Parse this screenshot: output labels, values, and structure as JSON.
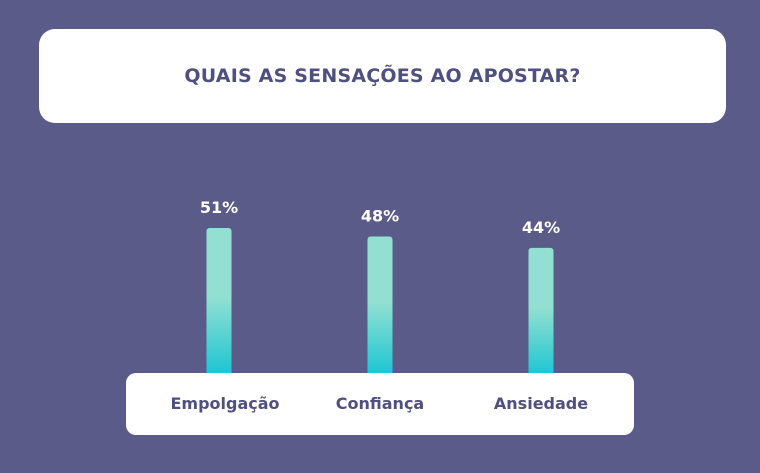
{
  "colors": {
    "background": "#5b5b8a",
    "card": "#ffffff",
    "text_dark": "#4f4f80",
    "bar_top": "#93e0d2",
    "bar_bottom": "#12c3d3"
  },
  "chart_data": {
    "type": "bar",
    "title": "QUAIS AS SENSAÇÕES AO APOSTAR?",
    "categories": [
      "Empolgação",
      "Confiança",
      "Ansiedade"
    ],
    "values": [
      51,
      48,
      44
    ],
    "value_labels": [
      "51%",
      "48%",
      "44%"
    ],
    "unit": "%",
    "grid": false,
    "legend": "none"
  }
}
